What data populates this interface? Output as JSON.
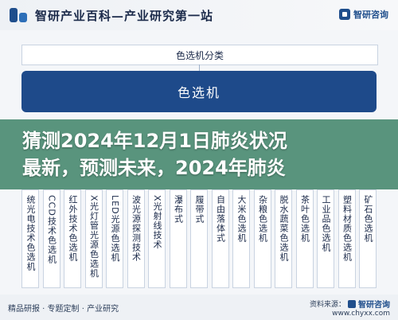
{
  "header": {
    "title": "智研产业百科—产业研究第一站",
    "brand": "智研咨询"
  },
  "diagram": {
    "category_title": "色选机分类",
    "main_node": "色选机",
    "columns": [
      "统光电技术色选机",
      "CCD技术色选机",
      "红外技术色选机",
      "X光灯管光源色选机",
      "LED光源色选机",
      "波光源探测技术",
      "X光射线技术",
      "瀑布式",
      "履带式",
      "自由落体式",
      "大米色选机",
      "杂粮色选机",
      "脱水蔬菜色选机",
      "茶叶色选机",
      "工业品色选机",
      "塑料材质色选机",
      "矿石色选机"
    ]
  },
  "overlay": {
    "line1": "猜测2024年12月1日肺炎状况",
    "line2": "最新，预测未来，2024年肺炎"
  },
  "footer": {
    "left": "精品研报 · 专题定制 · 产业研究",
    "source_label": "资料来源：",
    "brand": "智研咨询",
    "url": "www.chyxx.com"
  }
}
